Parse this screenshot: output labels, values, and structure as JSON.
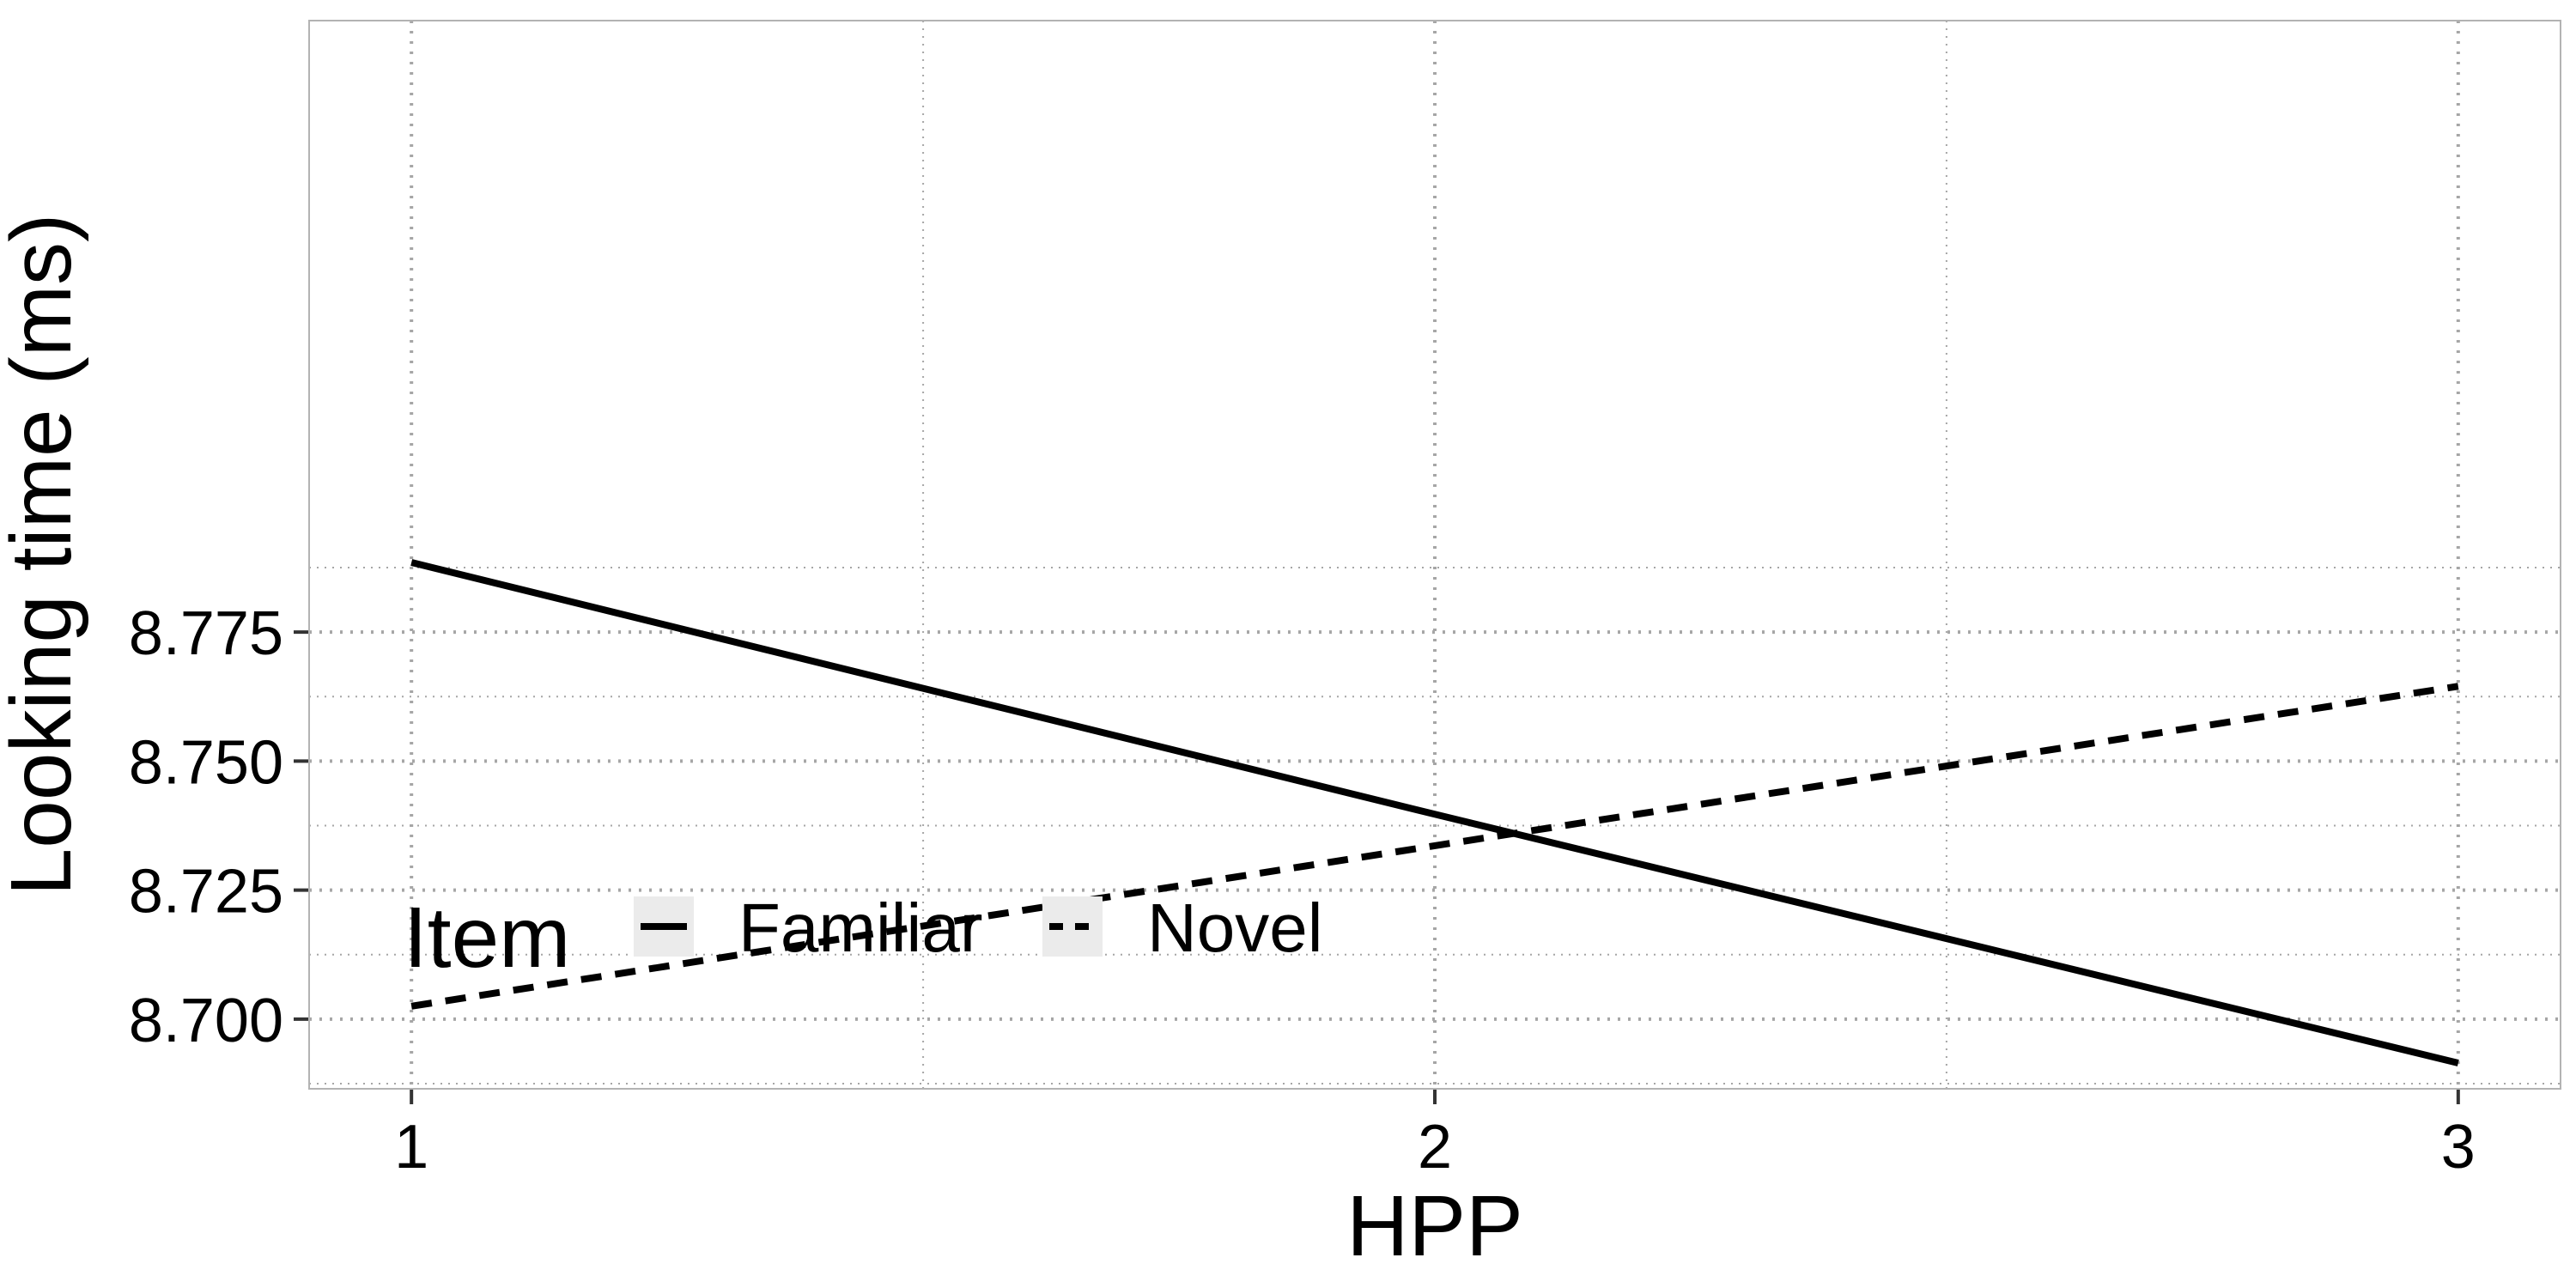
{
  "chart_data": {
    "type": "line",
    "title": "",
    "xlabel": "HPP",
    "ylabel": "Looking time (ms)",
    "x": [
      1,
      2,
      3
    ],
    "xlim": [
      0.9,
      3.1
    ],
    "ylim": [
      8.6865,
      8.8935
    ],
    "x_ticks": [
      1,
      2,
      3
    ],
    "x_tick_labels": [
      "1",
      "2",
      "3"
    ],
    "y_ticks": [
      8.7,
      8.725,
      8.75,
      8.775
    ],
    "y_tick_labels": [
      "8.700",
      "8.725",
      "8.750",
      "8.775"
    ],
    "x_minor_ticks": [
      1.5,
      2.5
    ],
    "y_minor_ticks": [
      8.6875,
      8.7125,
      8.7375,
      8.7625,
      8.7875
    ],
    "grid": true,
    "legend": {
      "title": "Item",
      "placement": "bottom-left inside",
      "direction": "horizontal"
    },
    "series": [
      {
        "name": "Familiar",
        "style": "solid",
        "color": "#000000",
        "values": [
          8.7885,
          8.7397,
          8.6915
        ]
      },
      {
        "name": "Novel",
        "style": "dashed",
        "color": "#000000",
        "values": [
          8.7025,
          8.7336,
          8.7645
        ]
      }
    ]
  },
  "colors": {
    "panel_border": "#b3b3b3",
    "grid_line": "#a6a6a6",
    "legend_key_background": "#ebebeb",
    "line": "#000000"
  }
}
